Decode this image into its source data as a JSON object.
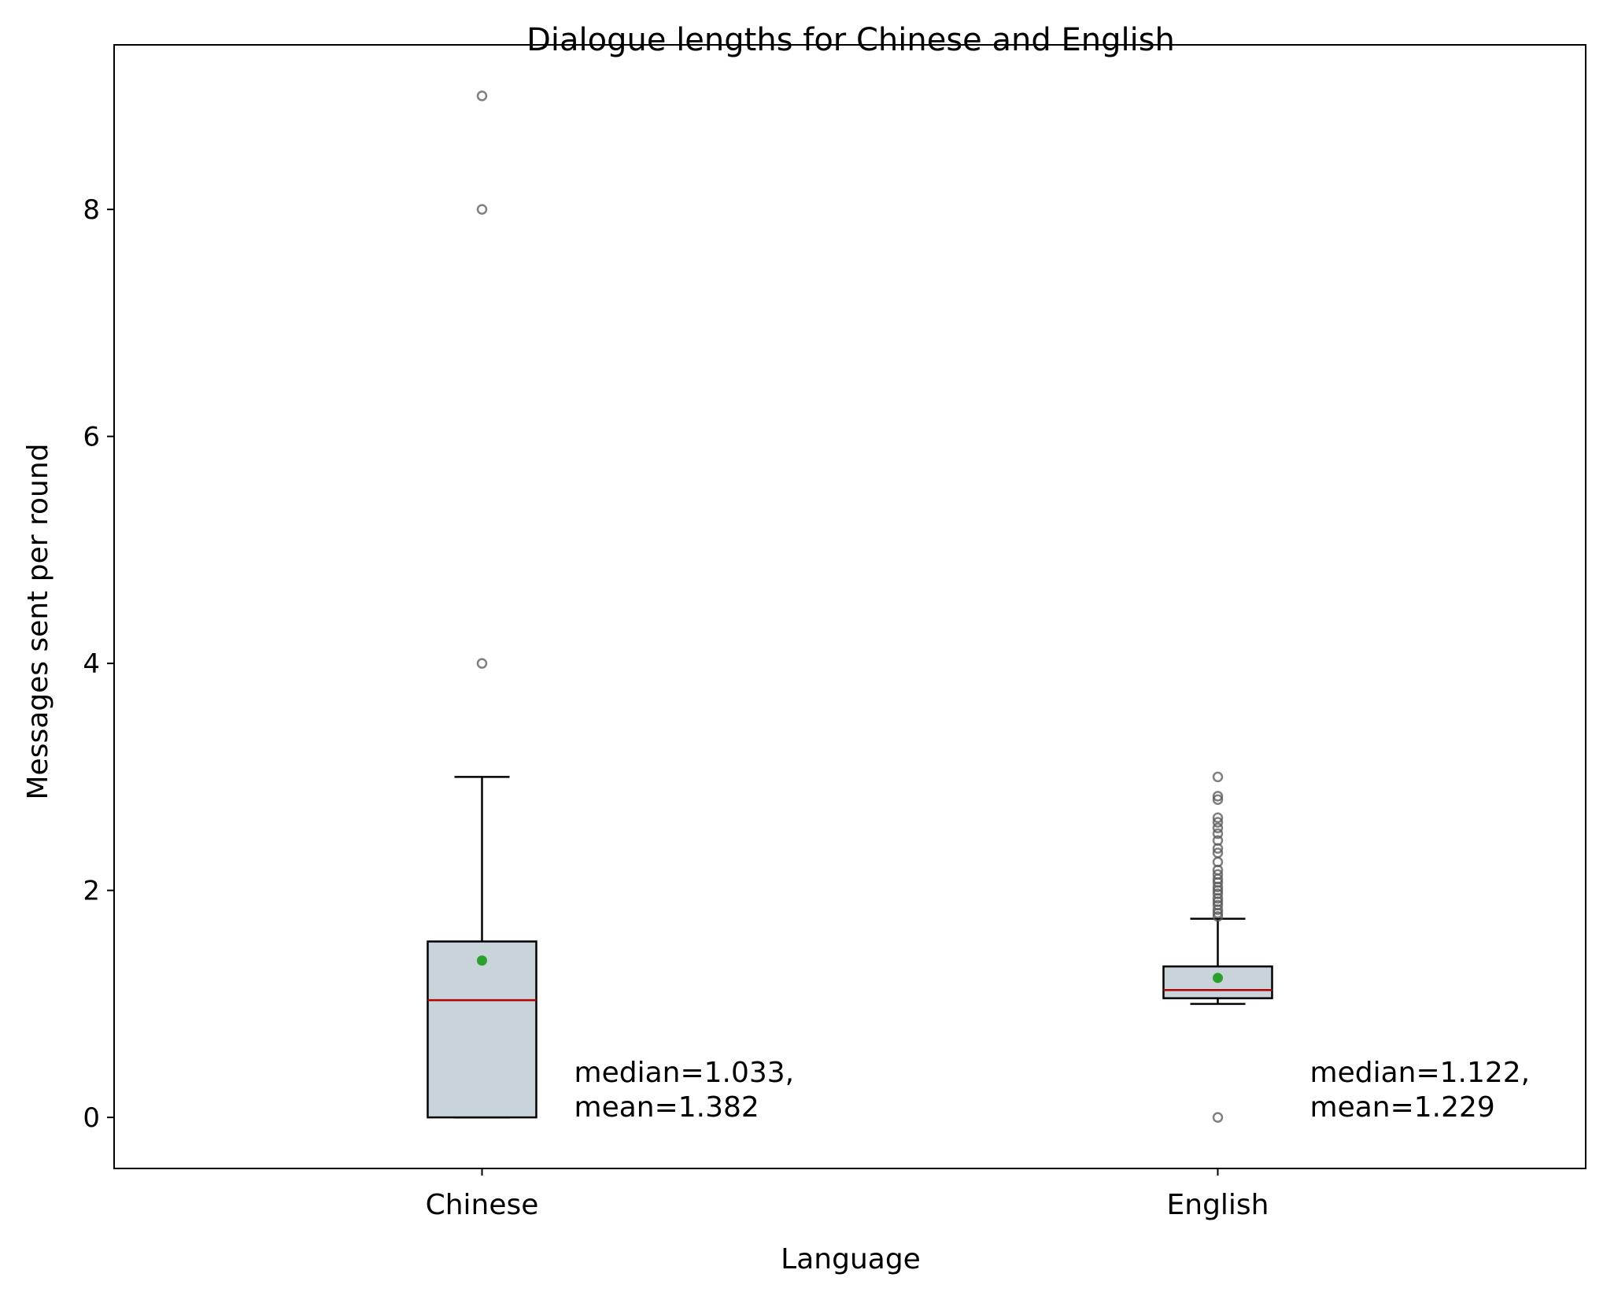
{
  "chart_data": {
    "type": "box",
    "title": "Dialogue lengths for Chinese and English",
    "xlabel": "Language",
    "ylabel": "Messages sent per round",
    "ylim": [
      -0.45,
      9.45
    ],
    "yticks": [
      0,
      2,
      4,
      6,
      8
    ],
    "ytick_labels": [
      "0",
      "2",
      "4",
      "6",
      "8"
    ],
    "grid": false,
    "categories": [
      "Chinese",
      "English"
    ],
    "colors": {
      "box_fill": "#c8d4d9",
      "box_edge": "#000000",
      "median_line": "#b30000",
      "mean_marker": "#2ca02c",
      "outlier_edge": "#555555"
    },
    "boxes": [
      {
        "category": "Chinese",
        "whisker_low": 0.0,
        "q1": 0.0,
        "median": 1.033,
        "q3": 1.55,
        "whisker_high": 3.0,
        "mean": 1.382,
        "outliers": [
          4.0,
          8.0,
          9.0
        ],
        "annotation_line1": "median=1.033,",
        "annotation_line2": "mean=1.382"
      },
      {
        "category": "English",
        "whisker_low": 1.0,
        "q1": 1.05,
        "median": 1.122,
        "q3": 1.33,
        "whisker_high": 1.75,
        "mean": 1.229,
        "outliers": [
          0.0,
          1.77,
          1.8,
          1.83,
          1.87,
          1.9,
          1.93,
          1.97,
          2.0,
          2.03,
          2.07,
          2.1,
          2.14,
          2.18,
          2.25,
          2.33,
          2.37,
          2.44,
          2.5,
          2.55,
          2.6,
          2.64,
          2.8,
          2.83,
          3.0
        ],
        "annotation_line1": "median=1.122,",
        "annotation_line2": "mean=1.229"
      }
    ]
  }
}
